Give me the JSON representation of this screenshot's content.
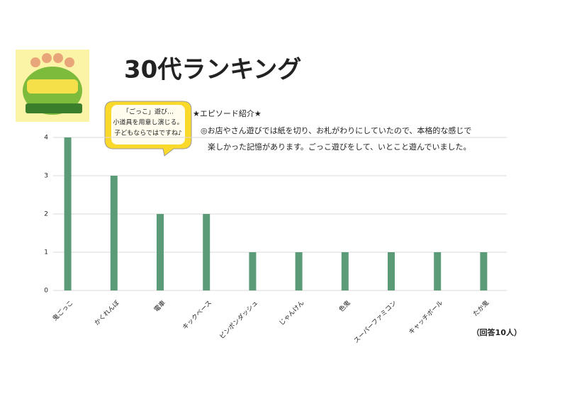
{
  "chart_data": {
    "type": "bar",
    "title": "30代ランキング",
    "categories": [
      "鬼ごっこ",
      "かくれんぼ",
      "電車",
      "キックベース",
      "ピンポンダッシュ",
      "じゃんけん",
      "色鬼",
      "スーパーファミコン",
      "キャッチボール",
      "たか鬼"
    ],
    "values": [
      4,
      3,
      2,
      2,
      1,
      1,
      1,
      1,
      1,
      1
    ],
    "color": "#5b9b78",
    "ylim": [
      0,
      4
    ],
    "yticks": [
      0,
      1,
      2,
      3,
      4
    ],
    "grid": true,
    "bubble": [
      "「ごっこ」遊び…",
      "小道具を用意し演じる。",
      "子どもならではですね♪"
    ],
    "episode_title": "★エピソード紹介★",
    "episode_lines": [
      "◎お店やさん遊びでは紙を切り、お札がわりにしていたので、本格的な感じで",
      "楽しかった記憶があります。ごっこ遊びをして、いとこと遊んでいました。"
    ],
    "respondents": "（回答10人）"
  }
}
